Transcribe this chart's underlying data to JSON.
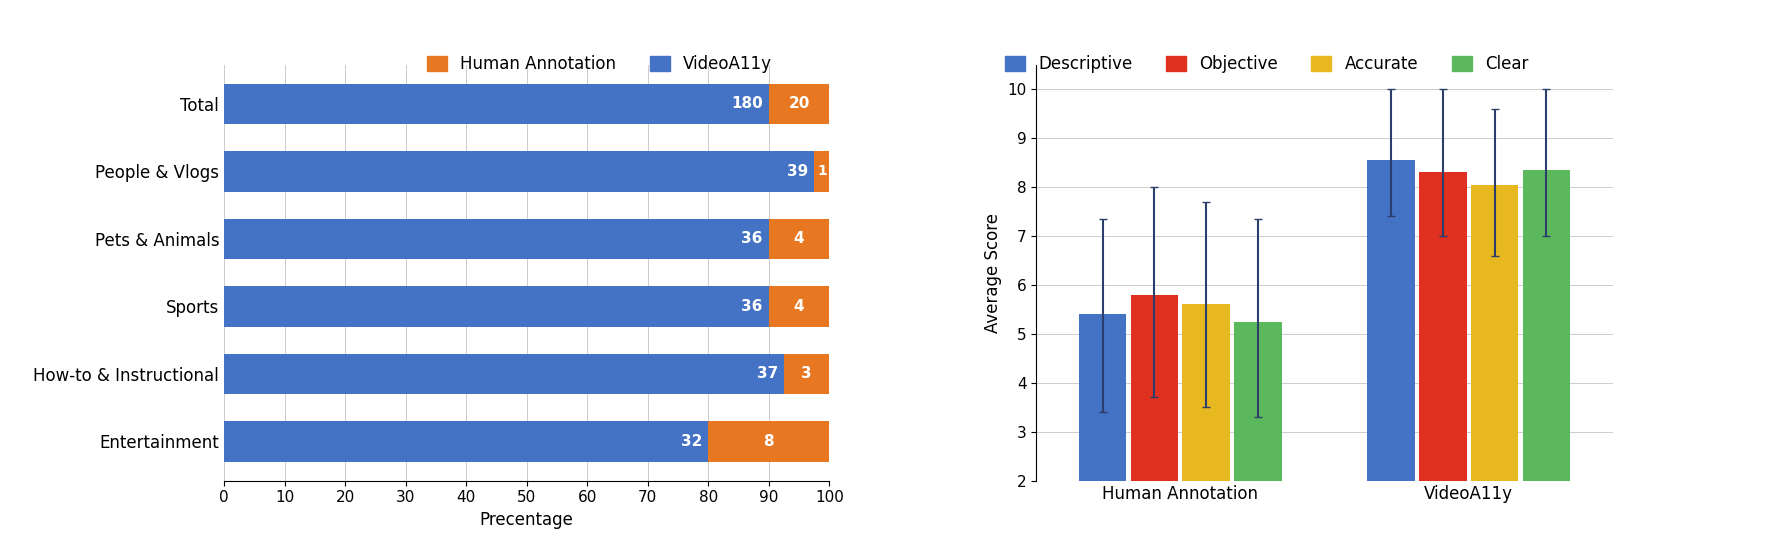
{
  "left_chart": {
    "categories": [
      "Entertainment",
      "How-to & Instructional",
      "Sports",
      "Pets & Animals",
      "People & Vlogs",
      "Total"
    ],
    "videoa11y_values": [
      32,
      37,
      36,
      36,
      39,
      180
    ],
    "human_values": [
      8,
      3,
      4,
      4,
      1,
      20
    ],
    "bar_color_blue": "#4472C4",
    "bar_color_orange": "#E87722",
    "xlabel": "Precentage",
    "xlim": [
      0,
      100
    ],
    "xticks": [
      0,
      10,
      20,
      30,
      40,
      50,
      60,
      70,
      80,
      90,
      100
    ]
  },
  "right_chart": {
    "groups": [
      "Human Annotation",
      "VideoA11y"
    ],
    "metrics": [
      "Descriptive",
      "Objective",
      "Accurate",
      "Clear"
    ],
    "metric_colors": [
      "#4472C4",
      "#E03020",
      "#E8B820",
      "#5CB85C"
    ],
    "values": {
      "Human Annotation": [
        5.4,
        5.8,
        5.6,
        5.25
      ],
      "VideoA11y": [
        8.55,
        8.3,
        8.05,
        8.35
      ]
    },
    "errors_lower": {
      "Human Annotation": [
        2.0,
        2.1,
        2.1,
        1.95
      ],
      "VideoA11y": [
        1.15,
        1.3,
        1.45,
        1.35
      ]
    },
    "errors_upper": {
      "Human Annotation": [
        1.95,
        2.2,
        2.1,
        2.1
      ],
      "VideoA11y": [
        1.45,
        1.7,
        1.55,
        1.65
      ]
    },
    "ylabel": "Average Score",
    "ylim": [
      2,
      10.5
    ],
    "yticks": [
      2,
      3,
      4,
      5,
      6,
      7,
      8,
      9,
      10
    ]
  },
  "figure": {
    "bg_color": "#FFFFFF",
    "grid_color": "#CCCCCC"
  }
}
